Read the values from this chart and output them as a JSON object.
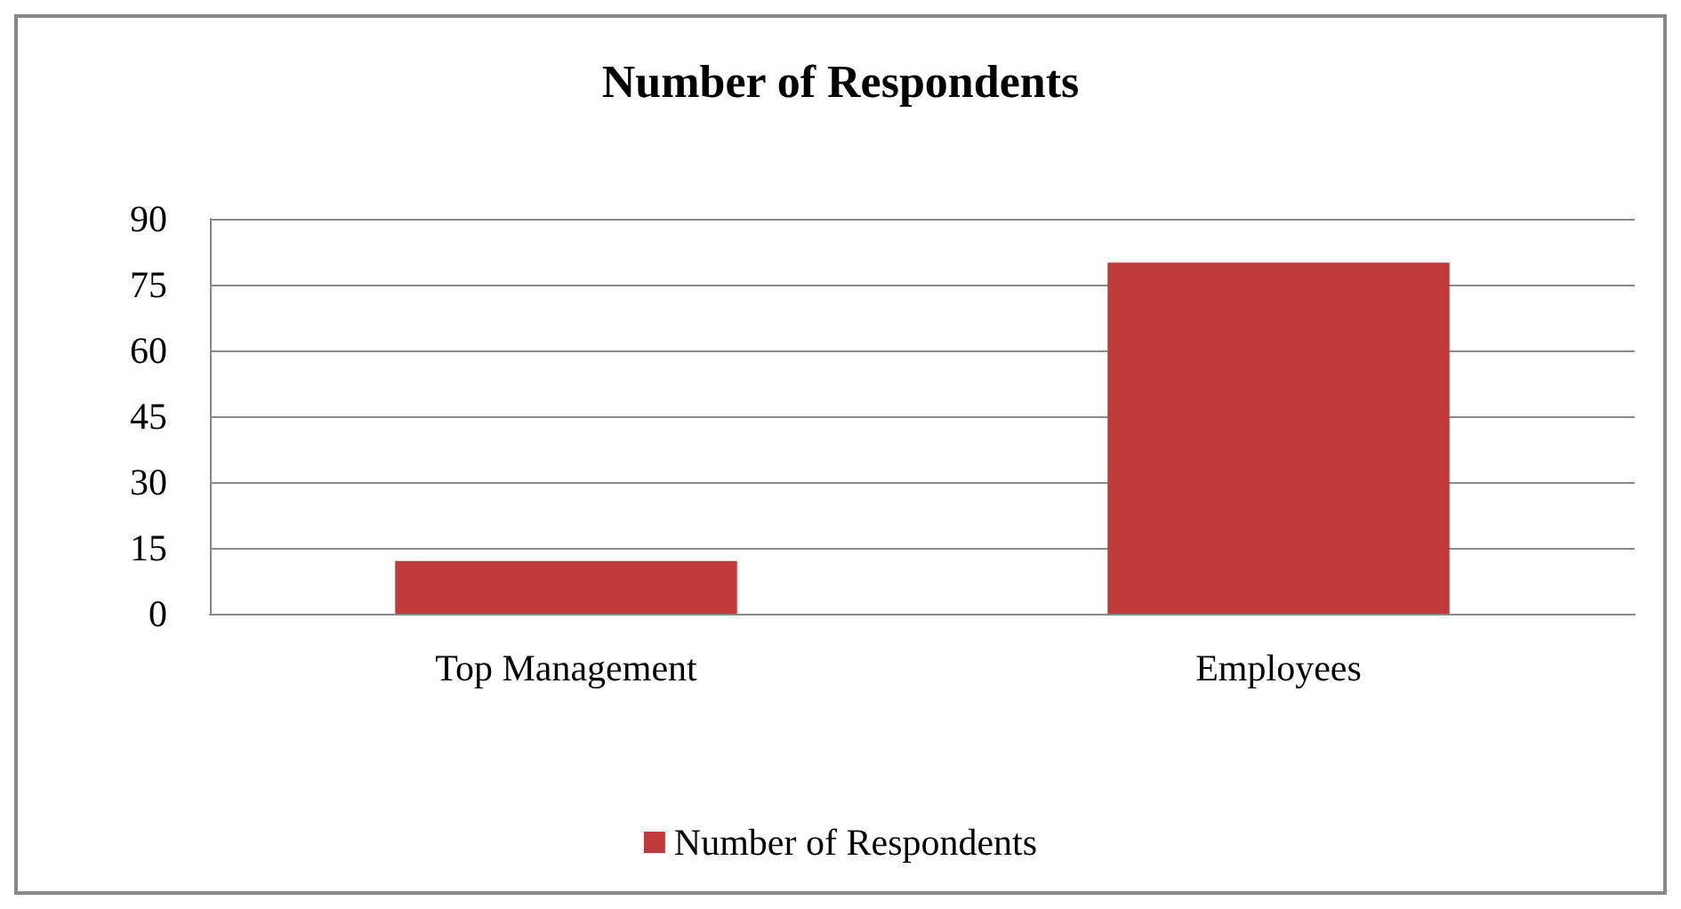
{
  "chart_data": {
    "type": "bar",
    "title": "Number of Respondents",
    "categories": [
      "Top Management",
      "Employees"
    ],
    "series": [
      {
        "name": "Number of Respondents",
        "color": "#c0393b",
        "values": [
          12,
          80
        ]
      }
    ],
    "ylim": [
      0,
      90
    ],
    "yticks": [
      0,
      15,
      30,
      45,
      60,
      75,
      90
    ],
    "grid": "y",
    "legend": "bottom"
  }
}
